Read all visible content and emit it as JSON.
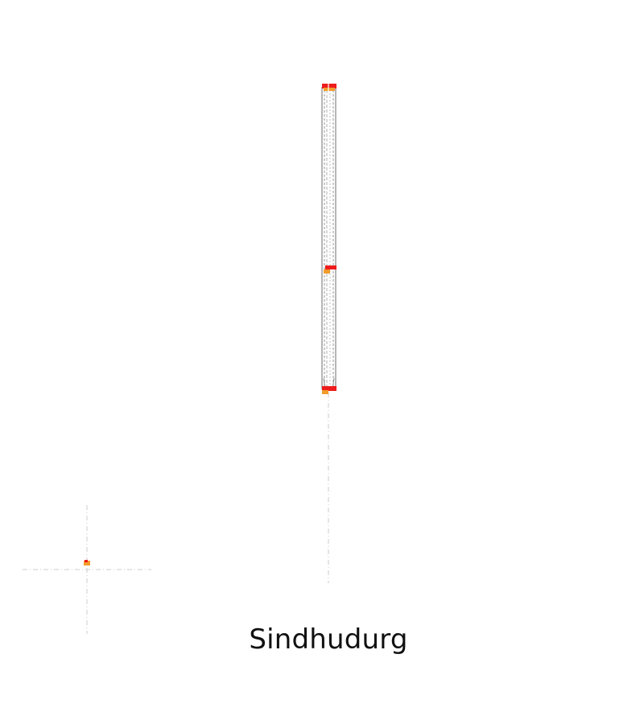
{
  "title": "Sindhudurg",
  "colors": {
    "structure_stroke": "#8a8a8a",
    "guide_line": "#d0d0d0",
    "marker_red": "#ee1c1c",
    "marker_orange": "#f39c2b"
  }
}
